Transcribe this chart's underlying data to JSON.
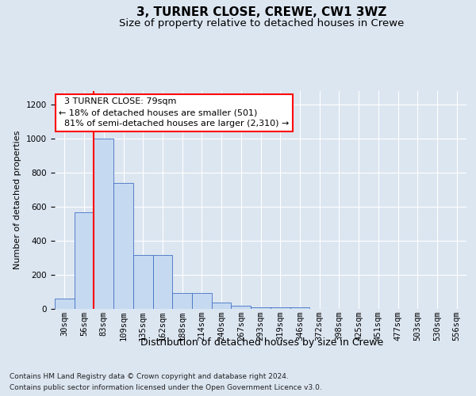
{
  "title": "3, TURNER CLOSE, CREWE, CW1 3WZ",
  "subtitle": "Size of property relative to detached houses in Crewe",
  "xlabel": "Distribution of detached houses by size in Crewe",
  "ylabel": "Number of detached properties",
  "footer1": "Contains HM Land Registry data © Crown copyright and database right 2024.",
  "footer2": "Contains public sector information licensed under the Open Government Licence v3.0.",
  "bar_labels": [
    "30sqm",
    "56sqm",
    "83sqm",
    "109sqm",
    "135sqm",
    "162sqm",
    "188sqm",
    "214sqm",
    "240sqm",
    "267sqm",
    "293sqm",
    "319sqm",
    "346sqm",
    "372sqm",
    "398sqm",
    "425sqm",
    "451sqm",
    "477sqm",
    "503sqm",
    "530sqm",
    "556sqm"
  ],
  "bar_values": [
    60,
    570,
    1000,
    740,
    315,
    315,
    95,
    95,
    35,
    20,
    10,
    10,
    10,
    0,
    0,
    0,
    0,
    0,
    0,
    0,
    0
  ],
  "bar_color": "#c5d9f1",
  "bar_edge_color": "#4472c4",
  "background_color": "#dce6f1",
  "plot_bg_color": "#dce6f1",
  "ylim": [
    0,
    1280
  ],
  "yticks": [
    0,
    200,
    400,
    600,
    800,
    1000,
    1200
  ],
  "red_line_bin": 2,
  "annotation_text": "  3 TURNER CLOSE: 79sqm\n← 18% of detached houses are smaller (501)\n  81% of semi-detached houses are larger (2,310) →",
  "annotation_box_color": "white",
  "annotation_box_edge": "red",
  "title_fontsize": 11,
  "subtitle_fontsize": 9.5,
  "ylabel_fontsize": 8,
  "xlabel_fontsize": 9,
  "tick_fontsize": 7.5,
  "annotation_fontsize": 8,
  "footer_fontsize": 6.5
}
